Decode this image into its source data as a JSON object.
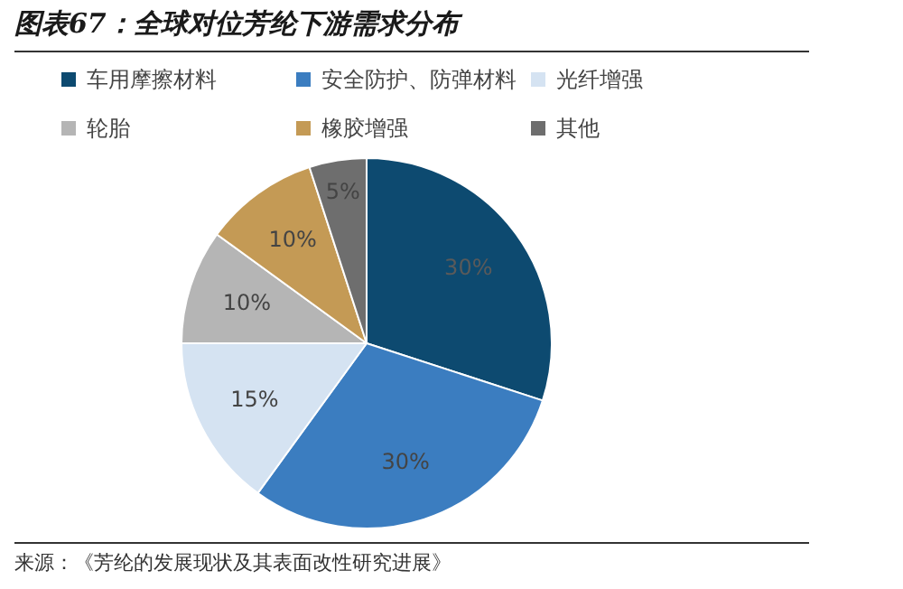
{
  "chart_data": {
    "type": "pie",
    "title": "图表67：全球对位芳纶下游需求分布",
    "categories": [
      "车用摩擦材料",
      "安全防护、防弹材料",
      "光纤增强",
      "轮胎",
      "橡胶增强",
      "其他"
    ],
    "values": [
      30,
      30,
      15,
      10,
      10,
      5
    ],
    "colors": [
      "#0d4a70",
      "#3b7dc0",
      "#d5e3f2",
      "#b5b5b5",
      "#c49a55",
      "#6e6e6e"
    ],
    "value_labels": [
      "30%",
      "30%",
      "15%",
      "10%",
      "10%",
      "5%"
    ],
    "legend": "top",
    "annotations": [
      "来源：《芳纶的发展现状及其表面改性研究进展》"
    ]
  }
}
